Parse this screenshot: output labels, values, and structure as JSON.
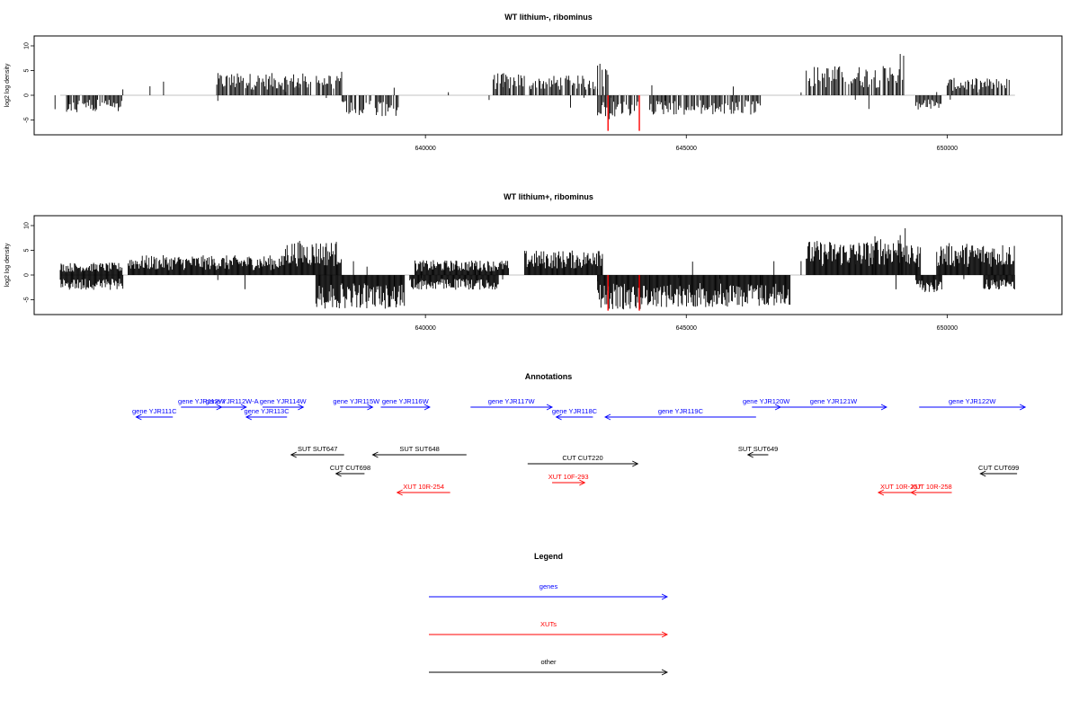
{
  "colors": {
    "genes": "#0000ff",
    "xuts": "#ff0000",
    "other": "#000000",
    "highlight": "#ff0000",
    "bar": "#000000",
    "axis": "#000000",
    "baseline": "#888888"
  },
  "chart_data": [
    {
      "type": "bar",
      "title": "WT lithium-, ribominus",
      "ylabel": "log2 log density",
      "xlim": [
        632500,
        652200
      ],
      "ylim": [
        -8,
        12
      ],
      "xticks": [
        640000,
        645000,
        650000
      ],
      "xtick_labels": [
        "640000",
        "645000",
        "650000"
      ],
      "yticks": [
        -5,
        0,
        5,
        10
      ],
      "ytick_labels": [
        "-5",
        "0",
        "5",
        "10"
      ],
      "pos_segments": [
        {
          "start": 636000,
          "end": 637800,
          "max": 4.5
        },
        {
          "start": 637800,
          "end": 638400,
          "max": 5.0
        },
        {
          "start": 641300,
          "end": 641900,
          "max": 4.5
        },
        {
          "start": 642000,
          "end": 643300,
          "max": 4.0
        },
        {
          "start": 643300,
          "end": 643500,
          "max": 6.8
        },
        {
          "start": 647300,
          "end": 649100,
          "max": 6.0
        },
        {
          "start": 649100,
          "end": 649200,
          "max": 9.5
        },
        {
          "start": 650000,
          "end": 651200,
          "max": 3.5
        }
      ],
      "neg_segments": [
        {
          "start": 633100,
          "end": 634200,
          "min": -3.5
        },
        {
          "start": 638400,
          "end": 639500,
          "min": -4.5
        },
        {
          "start": 643300,
          "end": 644100,
          "min": -5.0
        },
        {
          "start": 644300,
          "end": 646400,
          "min": -4.0
        },
        {
          "start": 649400,
          "end": 649900,
          "min": -3.0
        }
      ],
      "highlight_x": [
        643500,
        644100
      ],
      "highlight_min": -7.2
    },
    {
      "type": "bar",
      "title": "WT lithium+, ribominus",
      "ylabel": "log2 log density",
      "xlim": [
        632500,
        652200
      ],
      "ylim": [
        -8,
        12
      ],
      "xticks": [
        640000,
        645000,
        650000
      ],
      "xtick_labels": [
        "640000",
        "645000",
        "650000"
      ],
      "yticks": [
        -5,
        0,
        5,
        10
      ],
      "ytick_labels": [
        "-5",
        "0",
        "5",
        "10"
      ],
      "pos_segments": [
        {
          "start": 633000,
          "end": 634200,
          "max": 2.5
        },
        {
          "start": 634300,
          "end": 637300,
          "max": 4.0
        },
        {
          "start": 637300,
          "end": 638400,
          "max": 7.0
        },
        {
          "start": 639800,
          "end": 641600,
          "max": 3.0
        },
        {
          "start": 641900,
          "end": 643200,
          "max": 5.0
        },
        {
          "start": 643200,
          "end": 643400,
          "max": 7.0
        },
        {
          "start": 647300,
          "end": 648600,
          "max": 7.0
        },
        {
          "start": 648600,
          "end": 649100,
          "max": 8.0
        },
        {
          "start": 649100,
          "end": 649200,
          "max": 11.0
        },
        {
          "start": 649200,
          "end": 649500,
          "max": 6.0
        },
        {
          "start": 649800,
          "end": 651300,
          "max": 6.5
        }
      ],
      "neg_segments": [
        {
          "start": 633000,
          "end": 634200,
          "min": -3.0
        },
        {
          "start": 637900,
          "end": 639600,
          "min": -6.8
        },
        {
          "start": 639700,
          "end": 641400,
          "min": -3.0
        },
        {
          "start": 643300,
          "end": 644300,
          "min": -7.0
        },
        {
          "start": 644300,
          "end": 647000,
          "min": -6.5
        },
        {
          "start": 649400,
          "end": 649900,
          "min": -3.5
        },
        {
          "start": 650700,
          "end": 651300,
          "min": -3.0
        }
      ],
      "highlight_x": [
        643500,
        644100
      ],
      "highlight_min": -7.2
    }
  ],
  "annotations": {
    "title": "Annotations",
    "items": [
      {
        "label": "gene YJR111C",
        "start": 633100,
        "end": 634000,
        "row": 0,
        "dir": "left",
        "kind": "gene"
      },
      {
        "label": "gene YJR112W",
        "start": 634200,
        "end": 635200,
        "row": -1,
        "dir": "right",
        "kind": "gene"
      },
      {
        "label": "gene YJR112W-A",
        "start": 635100,
        "end": 635800,
        "row": -1,
        "dir": "right",
        "kind": "gene"
      },
      {
        "label": "gene YJR113C",
        "start": 635800,
        "end": 636800,
        "row": 0,
        "dir": "left",
        "kind": "gene"
      },
      {
        "label": "gene YJR114W",
        "start": 636200,
        "end": 637200,
        "row": -1,
        "dir": "right",
        "kind": "gene"
      },
      {
        "label": "gene YJR115W",
        "start": 638100,
        "end": 638900,
        "row": -1,
        "dir": "right",
        "kind": "gene"
      },
      {
        "label": "gene YJR116W",
        "start": 639100,
        "end": 640300,
        "row": -1,
        "dir": "right",
        "kind": "gene"
      },
      {
        "label": "gene YJR117W",
        "start": 641300,
        "end": 643300,
        "row": -1,
        "dir": "right",
        "kind": "gene"
      },
      {
        "label": "gene YJR118C",
        "start": 643400,
        "end": 644300,
        "row": 0,
        "dir": "left",
        "kind": "gene"
      },
      {
        "label": "gene YJR119C",
        "start": 644600,
        "end": 648300,
        "row": 0,
        "dir": "left",
        "kind": "gene"
      },
      {
        "label": "gene YJR120W",
        "start": 648200,
        "end": 648900,
        "row": -1,
        "dir": "right",
        "kind": "gene"
      },
      {
        "label": "gene YJR121W",
        "start": 648900,
        "end": 651500,
        "row": -1,
        "dir": "right",
        "kind": "gene"
      },
      {
        "label": "gene YJR122W",
        "start": 652300,
        "end": 654900,
        "row": -1,
        "dir": "right",
        "kind": "gene"
      },
      {
        "label": "SUT SUT647",
        "start": 636900,
        "end": 638200,
        "row": 4,
        "dir": "left",
        "kind": "other"
      },
      {
        "label": "SUT SUT648",
        "start": 638900,
        "end": 641200,
        "row": 4,
        "dir": "left",
        "kind": "other"
      },
      {
        "label": "SUT SUT649",
        "start": 648100,
        "end": 648600,
        "row": 4,
        "dir": "left",
        "kind": "other"
      },
      {
        "label": "CUT CUT220",
        "start": 642700,
        "end": 645400,
        "row": 5,
        "dir": "right",
        "kind": "other"
      },
      {
        "label": "CUT CUT698",
        "start": 638000,
        "end": 638700,
        "row": 6,
        "dir": "left",
        "kind": "other"
      },
      {
        "label": "CUT CUT699",
        "start": 653800,
        "end": 654700,
        "row": 6,
        "dir": "left",
        "kind": "other"
      },
      {
        "label": "XUT 10F-293",
        "start": 643300,
        "end": 644100,
        "row": 7,
        "dir": "right",
        "kind": "xut"
      },
      {
        "label": "XUT 10R-254",
        "start": 639500,
        "end": 640800,
        "row": 8,
        "dir": "left",
        "kind": "xut"
      },
      {
        "label": "XUT 10R-257",
        "start": 651300,
        "end": 652400,
        "row": 8,
        "dir": "left",
        "kind": "xut"
      },
      {
        "label": "XUT 10R-258",
        "start": 652100,
        "end": 653100,
        "row": 8,
        "dir": "left",
        "kind": "xut"
      }
    ]
  },
  "legend": {
    "title": "Legend",
    "items": [
      {
        "label": "genes",
        "kind": "gene"
      },
      {
        "label": "XUTs",
        "kind": "xut"
      },
      {
        "label": "other",
        "kind": "other"
      }
    ]
  }
}
